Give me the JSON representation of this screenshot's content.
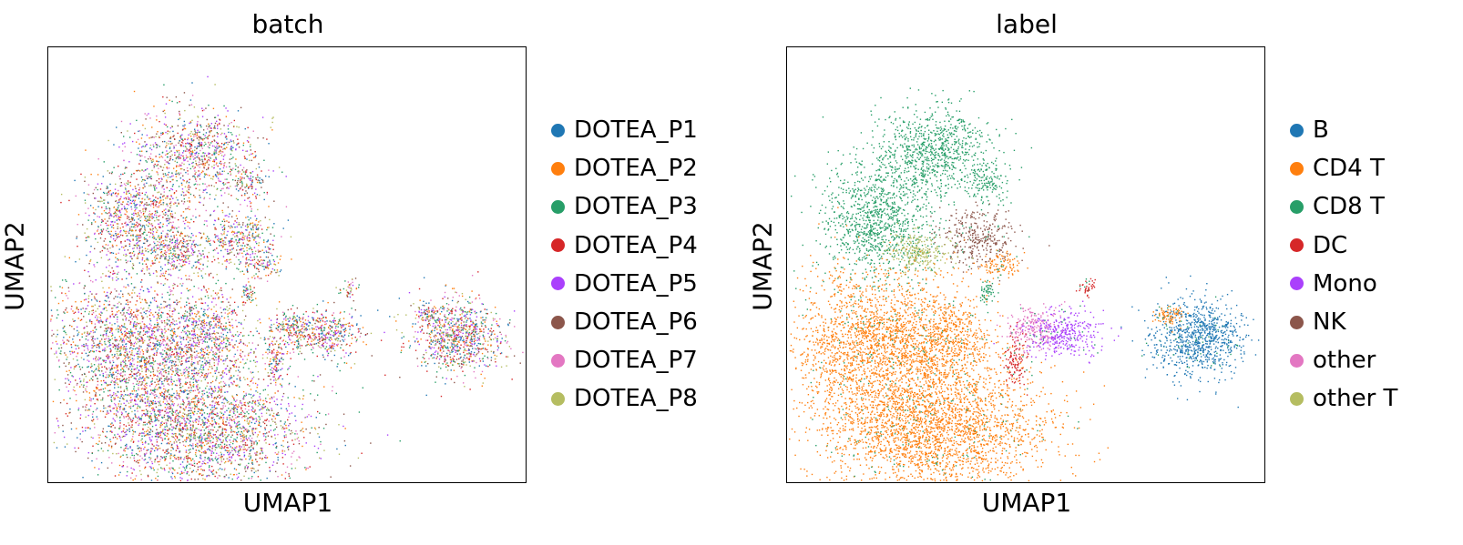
{
  "chart_data": [
    {
      "type": "scatter",
      "title": "batch",
      "xlabel": "UMAP1",
      "ylabel": "UMAP2",
      "grid": false,
      "legend_position": "right",
      "series": [
        {
          "name": "DOTEA_P1",
          "color": "#1f77b4"
        },
        {
          "name": "DOTEA_P2",
          "color": "#ff7f0e"
        },
        {
          "name": "DOTEA_P3",
          "color": "#279e68"
        },
        {
          "name": "DOTEA_P4",
          "color": "#d62728"
        },
        {
          "name": "DOTEA_P5",
          "color": "#aa40fc"
        },
        {
          "name": "DOTEA_P6",
          "color": "#8c564b"
        },
        {
          "name": "DOTEA_P7",
          "color": "#e377c2"
        },
        {
          "name": "DOTEA_P8",
          "color": "#b5bd61"
        }
      ]
    },
    {
      "type": "scatter",
      "title": "label",
      "xlabel": "UMAP1",
      "ylabel": "UMAP2",
      "grid": false,
      "legend_position": "right",
      "series": [
        {
          "name": "B",
          "color": "#1f77b4"
        },
        {
          "name": "CD4 T",
          "color": "#ff7f0e"
        },
        {
          "name": "CD8 T",
          "color": "#279e68"
        },
        {
          "name": "DC",
          "color": "#d62728"
        },
        {
          "name": "Mono",
          "color": "#aa40fc"
        },
        {
          "name": "NK",
          "color": "#8c564b"
        },
        {
          "name": "other",
          "color": "#e377c2"
        },
        {
          "name": "other T",
          "color": "#b5bd61"
        }
      ]
    }
  ]
}
